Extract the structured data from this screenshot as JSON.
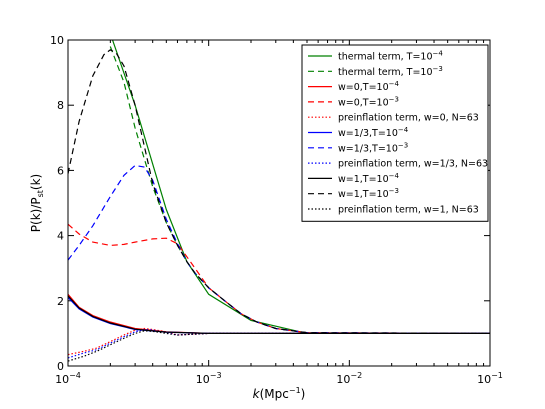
{
  "chart_data": {
    "type": "line",
    "xlabel_main": "k",
    "xlabel_unit": "(Mpc",
    "xlabel_exp": "−1",
    "xlabel_close": ")",
    "ylabel_main": "P(k)/P",
    "ylabel_sub": "st",
    "ylabel_close": "(k)",
    "xscale": "log",
    "xlim": [
      0.0001,
      0.1
    ],
    "ylim": [
      0,
      10
    ],
    "x_ticks": [
      {
        "value": 0.0001,
        "base": "10",
        "exp": "−4"
      },
      {
        "value": 0.001,
        "base": "10",
        "exp": "−3"
      },
      {
        "value": 0.01,
        "base": "10",
        "exp": "−2"
      },
      {
        "value": 0.1,
        "base": "10",
        "exp": "−1"
      }
    ],
    "y_ticks": [
      0,
      2,
      4,
      6,
      8,
      10
    ],
    "y_tick_labels": [
      "0",
      "2",
      "4",
      "6",
      "8",
      "10"
    ],
    "legend_position": "top-right",
    "series": [
      {
        "name": "thermal term, T=10",
        "name_exp": "−4",
        "color": "#008000",
        "dash": "solid",
        "x": [
          0.0001,
          0.00015,
          0.0002,
          0.0003,
          0.0005,
          0.0007,
          0.001,
          0.002,
          0.005,
          0.1
        ],
        "y": [
          10.6,
          10.5,
          10.2,
          8.0,
          4.8,
          3.2,
          2.2,
          1.4,
          1.0,
          1.0
        ]
      },
      {
        "name": "thermal term, T=10",
        "name_exp": "−3",
        "color": "#008000",
        "dash": "dashed",
        "x": [
          0.0002,
          0.00025,
          0.0003,
          0.0004,
          0.0005,
          0.0006,
          0.0007,
          0.0008,
          0.001,
          0.0013,
          0.0017,
          0.0022,
          0.003,
          0.005,
          0.1
        ],
        "y": [
          9.8,
          8.7,
          7.3,
          5.5,
          4.4,
          3.7,
          3.2,
          2.85,
          2.4,
          2.0,
          1.6,
          1.35,
          1.15,
          1.02,
          1.0
        ]
      },
      {
        "name": "w=0,T=10",
        "name_exp": "−4",
        "color": "#ff0000",
        "dash": "solid",
        "x": [
          0.0001,
          0.00012,
          0.00015,
          0.0002,
          0.0003,
          0.0005,
          0.001,
          0.1
        ],
        "y": [
          2.2,
          1.8,
          1.55,
          1.35,
          1.15,
          1.05,
          1.0,
          1.0
        ]
      },
      {
        "name": "w=0,T=10",
        "name_exp": "−3",
        "color": "#ff0000",
        "dash": "dashed",
        "x": [
          0.0001,
          0.00012,
          0.00015,
          0.0002,
          0.00025,
          0.0003,
          0.0004,
          0.0005,
          0.0006,
          0.0007,
          0.0008,
          0.001,
          0.0013,
          0.0017,
          0.0022,
          0.003,
          0.005,
          0.1
        ],
        "y": [
          4.35,
          4.05,
          3.8,
          3.7,
          3.73,
          3.8,
          3.9,
          3.92,
          3.75,
          3.35,
          3.0,
          2.4,
          2.0,
          1.6,
          1.35,
          1.15,
          1.02,
          1.0
        ]
      },
      {
        "name": "preinflation term, w=0, N=63",
        "color": "#ff0000",
        "dash": "dotted",
        "x": [
          0.0001,
          0.00013,
          0.00016,
          0.0002,
          0.00025,
          0.0003,
          0.00035,
          0.0004,
          0.0005,
          0.0006,
          0.0008,
          0.001,
          0.1
        ],
        "y": [
          0.35,
          0.45,
          0.55,
          0.75,
          0.95,
          1.1,
          1.15,
          1.12,
          1.05,
          0.95,
          0.98,
          1.0,
          1.0
        ]
      },
      {
        "name": "w=1/3,T=10",
        "name_exp": "−4",
        "color": "#0000ff",
        "dash": "solid",
        "x": [
          0.0001,
          0.00012,
          0.00015,
          0.0002,
          0.0003,
          0.0005,
          0.001,
          0.1
        ],
        "y": [
          2.1,
          1.75,
          1.5,
          1.3,
          1.12,
          1.04,
          1.0,
          1.0
        ]
      },
      {
        "name": "w=1/3,T=10",
        "name_exp": "−3",
        "color": "#0000ff",
        "dash": "dashed",
        "x": [
          0.0001,
          0.00012,
          0.00015,
          0.0002,
          0.00025,
          0.0003,
          0.00035,
          0.0004,
          0.0005,
          0.0006,
          0.0007,
          0.0008,
          0.001,
          0.0013,
          0.0017,
          0.0022,
          0.003,
          0.005,
          0.1
        ],
        "y": [
          3.25,
          3.7,
          4.3,
          5.2,
          5.85,
          6.15,
          6.1,
          5.7,
          4.5,
          3.75,
          3.2,
          2.85,
          2.4,
          2.0,
          1.6,
          1.35,
          1.15,
          1.02,
          1.0
        ]
      },
      {
        "name": "preinflation term, w=1/3, N=63",
        "color": "#0000ff",
        "dash": "dotted",
        "x": [
          0.0001,
          0.00013,
          0.00016,
          0.0002,
          0.00025,
          0.0003,
          0.00035,
          0.0004,
          0.0005,
          0.0006,
          0.0008,
          0.001,
          0.1
        ],
        "y": [
          0.25,
          0.4,
          0.5,
          0.7,
          0.9,
          1.05,
          1.12,
          1.1,
          1.02,
          0.95,
          0.98,
          1.0,
          1.0
        ]
      },
      {
        "name": "w=1,T=10",
        "name_exp": "−4",
        "color": "#000000",
        "dash": "solid",
        "x": [
          0.0001,
          0.00012,
          0.00015,
          0.0002,
          0.0003,
          0.0005,
          0.001,
          0.1
        ],
        "y": [
          2.15,
          1.78,
          1.52,
          1.32,
          1.13,
          1.04,
          1.0,
          1.0
        ]
      },
      {
        "name": "w=1,T=10",
        "name_exp": "−3",
        "color": "#000000",
        "dash": "dashed",
        "x": [
          0.0001,
          0.00012,
          0.00015,
          0.00018,
          0.0002,
          0.00022,
          0.00025,
          0.0003,
          0.0004,
          0.0005,
          0.0006,
          0.0007,
          0.0008,
          0.001,
          0.0013,
          0.0017,
          0.0022,
          0.003,
          0.005,
          0.1
        ],
        "y": [
          5.9,
          7.5,
          8.9,
          9.55,
          9.7,
          9.6,
          9.2,
          8.0,
          5.6,
          4.4,
          3.7,
          3.2,
          2.85,
          2.4,
          2.0,
          1.6,
          1.35,
          1.15,
          1.02,
          1.0
        ]
      },
      {
        "name": "preinflation term, w=1, N=63",
        "color": "#000000",
        "dash": "dotted",
        "x": [
          0.0001,
          0.00013,
          0.00016,
          0.0002,
          0.00025,
          0.0003,
          0.00035,
          0.0004,
          0.0005,
          0.0006,
          0.0008,
          0.001,
          0.1
        ],
        "y": [
          0.15,
          0.3,
          0.45,
          0.65,
          0.85,
          1.0,
          1.08,
          1.06,
          1.0,
          0.95,
          0.98,
          1.0,
          1.0
        ]
      }
    ]
  }
}
